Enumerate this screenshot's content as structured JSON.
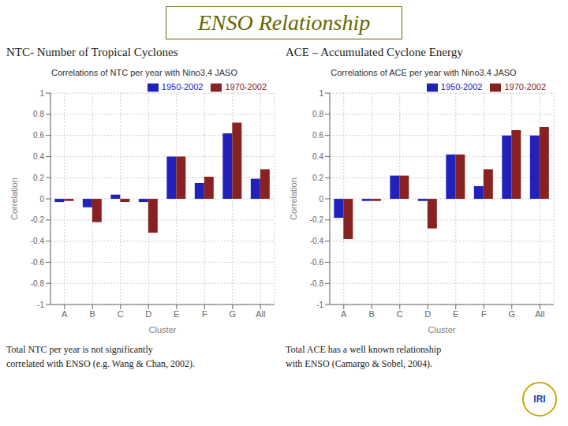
{
  "title": "ENSO Relationship",
  "annotations": [
    "IRI"
  ],
  "chart_data": [
    {
      "type": "bar",
      "title": "Correlations of NTC per year with Nino3.4 JASO",
      "subtitle": "NTC- Number of Tropical Cyclones",
      "annotations": [
        "Total NTC per year is not significantly\ncorrelated with ENSO (e.g. Wang & Chan, 2002)."
      ],
      "xlabel": "Cluster",
      "ylabel": "Correlation",
      "categories": [
        "A",
        "B",
        "C",
        "D",
        "E",
        "F",
        "G",
        "All"
      ],
      "series": [
        {
          "name": "1950-2002",
          "color": "#2222bb",
          "values": [
            -0.03,
            -0.08,
            0.04,
            -0.03,
            0.4,
            0.15,
            0.62,
            0.19
          ]
        },
        {
          "name": "1970-2002",
          "color": "#882222",
          "values": [
            -0.02,
            -0.22,
            -0.03,
            -0.32,
            0.4,
            0.21,
            0.72,
            0.28
          ]
        }
      ],
      "ylim": [
        -1,
        1
      ],
      "yticks": [
        -1,
        -0.8,
        -0.6,
        -0.4,
        -0.2,
        0,
        0.2,
        0.4,
        0.6,
        0.8,
        1
      ],
      "grid": true,
      "legend": "upper right"
    },
    {
      "type": "bar",
      "title": "Correlations of ACE per year with Nino3.4 JASO",
      "subtitle": "ACE – Accumulated Cyclone Energy",
      "annotations": [
        "Total ACE has a well known relationship\nwith ENSO (Camargo & Sobel, 2004)."
      ],
      "xlabel": "Cluster",
      "ylabel": "Correlation",
      "categories": [
        "A",
        "B",
        "C",
        "D",
        "E",
        "F",
        "G",
        "All"
      ],
      "series": [
        {
          "name": "1950-2002",
          "color": "#2222bb",
          "values": [
            -0.18,
            -0.02,
            0.22,
            -0.02,
            0.42,
            0.12,
            0.6,
            0.6
          ]
        },
        {
          "name": "1970-2002",
          "color": "#882222",
          "values": [
            -0.38,
            -0.02,
            0.22,
            -0.28,
            0.42,
            0.28,
            0.65,
            0.68
          ]
        }
      ],
      "ylim": [
        -1,
        1
      ],
      "yticks": [
        -1,
        -0.8,
        -0.6,
        -0.4,
        -0.2,
        0,
        0.2,
        0.4,
        0.6,
        0.8,
        1
      ],
      "grid": true,
      "legend": "upper right"
    }
  ]
}
